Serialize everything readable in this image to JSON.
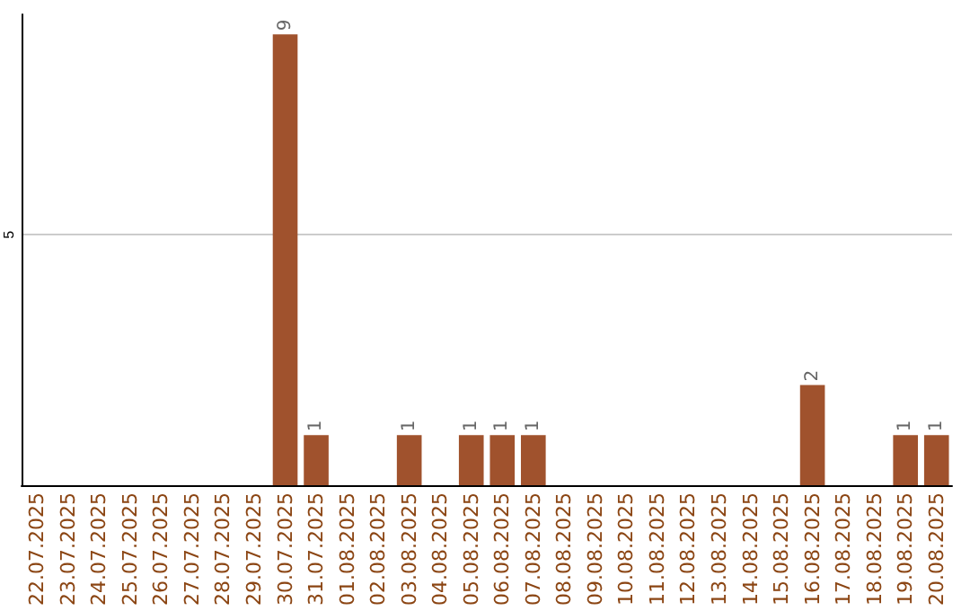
{
  "chart_data": {
    "type": "bar",
    "categories": [
      "22.07.2025",
      "23.07.2025",
      "24.07.2025",
      "25.07.2025",
      "26.07.2025",
      "27.07.2025",
      "28.07.2025",
      "29.07.2025",
      "30.07.2025",
      "31.07.2025",
      "01.08.2025",
      "02.08.2025",
      "03.08.2025",
      "04.08.2025",
      "05.08.2025",
      "06.08.2025",
      "07.08.2025",
      "08.08.2025",
      "09.08.2025",
      "10.08.2025",
      "11.08.2025",
      "12.08.2025",
      "13.08.2025",
      "14.08.2025",
      "15.08.2025",
      "16.08.2025",
      "17.08.2025",
      "18.08.2025",
      "19.08.2025",
      "20.08.2025"
    ],
    "values": [
      0,
      0,
      0,
      0,
      0,
      0,
      0,
      0,
      9,
      1,
      0,
      0,
      1,
      0,
      1,
      1,
      1,
      0,
      0,
      0,
      0,
      0,
      0,
      0,
      0,
      2,
      0,
      0,
      1,
      1
    ],
    "value_labels": [
      null,
      null,
      null,
      null,
      null,
      null,
      null,
      null,
      "9",
      "1",
      null,
      null,
      "1",
      null,
      "1",
      "1",
      "1",
      null,
      null,
      null,
      null,
      null,
      null,
      null,
      null,
      "2",
      null,
      null,
      "1",
      "1"
    ],
    "color": "#a0522d",
    "ylim": [
      0,
      9.4
    ],
    "yticks": [
      5
    ],
    "grid": "y"
  }
}
